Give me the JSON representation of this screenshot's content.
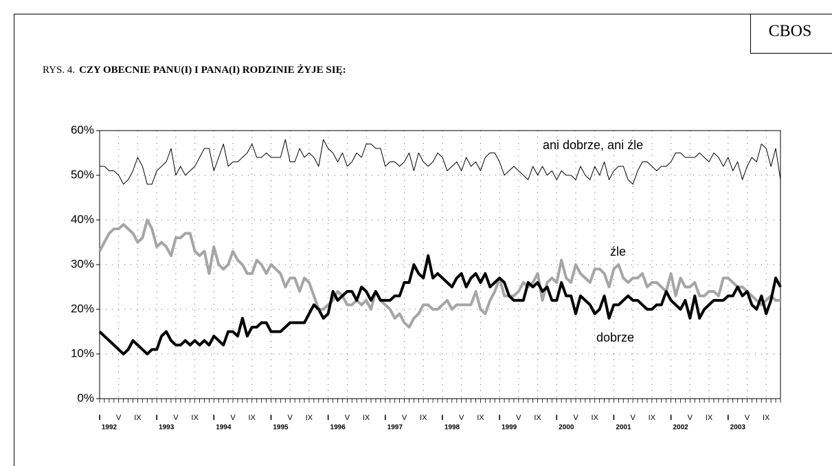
{
  "chart_data": {
    "type": "line",
    "source": "CBOS",
    "title_prefix": "RYS. 4.",
    "title": "CZY OBECNIE PANU(I) I PANA(I) RODZINIE ŻYJE SIĘ:",
    "categories": [
      "I",
      null,
      null,
      null,
      "V",
      null,
      null,
      null,
      "IX",
      null,
      null,
      null,
      "I",
      null,
      null,
      null,
      "V",
      null,
      null,
      null,
      "IX",
      null,
      null,
      null,
      "I",
      null,
      null,
      null,
      "V",
      null,
      null,
      null,
      "IX",
      null,
      null,
      null,
      "I",
      null,
      null,
      null,
      "V",
      null,
      null,
      null,
      "IX",
      null,
      null,
      null,
      "I",
      null,
      null,
      null,
      "V",
      null,
      null,
      null,
      "IX",
      null,
      null,
      null,
      "I",
      null,
      null,
      null,
      "V",
      null,
      null,
      null,
      "IX",
      null,
      null,
      null,
      "I",
      null,
      null,
      null,
      "V",
      null,
      null,
      null,
      "IX",
      null,
      null,
      null,
      "I",
      null,
      null,
      null,
      "V",
      null,
      null,
      null,
      "IX",
      null,
      null,
      null,
      "I",
      null,
      null,
      null,
      "V",
      null,
      null,
      null,
      "IX",
      null,
      null,
      null,
      "I",
      null,
      null,
      null,
      "V",
      null,
      null,
      null,
      "IX",
      null,
      null,
      null,
      "I",
      null,
      null,
      null,
      "V",
      null,
      null,
      null,
      "IX",
      null,
      null,
      null,
      "I",
      null,
      null,
      null,
      "V",
      null,
      null,
      null,
      "IX",
      null,
      null,
      null
    ],
    "years": [
      "1992",
      "1993",
      "1994",
      "1995",
      "1996",
      "1997",
      "1998",
      "1999",
      "2000",
      "2001",
      "2002",
      "2003"
    ],
    "ylim": [
      0,
      60
    ],
    "yticks": [
      {
        "value": 0,
        "label": "0%"
      },
      {
        "value": 10,
        "label": "10%"
      },
      {
        "value": 20,
        "label": "20%"
      },
      {
        "value": 30,
        "label": "30%"
      },
      {
        "value": 40,
        "label": "40%"
      },
      {
        "value": 50,
        "label": "50%"
      },
      {
        "value": 60,
        "label": "60%"
      }
    ],
    "grid": true,
    "series": [
      {
        "name": "ani dobrze, ani źle",
        "color": "#000000",
        "width": 1,
        "values": [
          52,
          52,
          51,
          51,
          50,
          48,
          49,
          51,
          54,
          52,
          48,
          48,
          51,
          52,
          53,
          56,
          50,
          52,
          50,
          51,
          52,
          54,
          56,
          56,
          51,
          54,
          57,
          52,
          53,
          53,
          54,
          55,
          57,
          54,
          54,
          55,
          54,
          54,
          54,
          58,
          53,
          53,
          56,
          54,
          55,
          54,
          52,
          58,
          56,
          55,
          53,
          55,
          52,
          53,
          55,
          54,
          57,
          57,
          56,
          56,
          52,
          53,
          53,
          52,
          53,
          55,
          51,
          55,
          53,
          52,
          53,
          55,
          54,
          51,
          52,
          53,
          51,
          54,
          52,
          53,
          51,
          54,
          55,
          55,
          53,
          50,
          51,
          52,
          51,
          50,
          49,
          52,
          50,
          52,
          50,
          51,
          49,
          51,
          50,
          50,
          49,
          52,
          50,
          49,
          52,
          50,
          53,
          49,
          51,
          52,
          52,
          49,
          48,
          51,
          53,
          53,
          52,
          51,
          52,
          52,
          53,
          55,
          55,
          54,
          54,
          54,
          55,
          54,
          53,
          55,
          54,
          52,
          54,
          51,
          53,
          49,
          52,
          54,
          53,
          57,
          56,
          52,
          56,
          49
        ]
      },
      {
        "name": "źle",
        "color": "#a6a6a6",
        "width": 4,
        "values": [
          33,
          35,
          37,
          38,
          38,
          39,
          38,
          37,
          35,
          36,
          40,
          38,
          34,
          35,
          34,
          32,
          36,
          36,
          37,
          37,
          33,
          32,
          33,
          28,
          34,
          30,
          29,
          30,
          33,
          31,
          30,
          28,
          28,
          31,
          30,
          28,
          30,
          29,
          28,
          25,
          27,
          27,
          24,
          27,
          26,
          23,
          20,
          20,
          21,
          22,
          24,
          23,
          21,
          21,
          22,
          21,
          22,
          20,
          24,
          22,
          21,
          20,
          18,
          19,
          17,
          16,
          18,
          19,
          21,
          21,
          20,
          20,
          21,
          22,
          20,
          21,
          21,
          21,
          21,
          24,
          20,
          19,
          22,
          24,
          27,
          23,
          23,
          23,
          24,
          26,
          25,
          26,
          28,
          22,
          26,
          27,
          26,
          31,
          27,
          26,
          30,
          28,
          27,
          26,
          29,
          29,
          28,
          25,
          29,
          30,
          27,
          26,
          27,
          27,
          28,
          25,
          26,
          26,
          25,
          24,
          28,
          23,
          27,
          25,
          25,
          26,
          23,
          23,
          24,
          24,
          23,
          27,
          27,
          26,
          25,
          25,
          24,
          23,
          22,
          21,
          22,
          23,
          22,
          22
        ]
      },
      {
        "name": "dobrze",
        "color": "#000000",
        "width": 4,
        "values": [
          15,
          14,
          13,
          12,
          11,
          10,
          11,
          13,
          12,
          11,
          10,
          11,
          11,
          14,
          15,
          13,
          12,
          12,
          13,
          12,
          13,
          12,
          13,
          12,
          14,
          13,
          12,
          15,
          15,
          14,
          18,
          14,
          16,
          16,
          17,
          17,
          15,
          15,
          15,
          16,
          17,
          17,
          17,
          17,
          19,
          21,
          20,
          18,
          19,
          24,
          22,
          23,
          24,
          24,
          22,
          25,
          24,
          22,
          24,
          22,
          22,
          22,
          23,
          23,
          26,
          26,
          30,
          28,
          27,
          32,
          27,
          28,
          27,
          26,
          25,
          27,
          28,
          25,
          27,
          28,
          26,
          28,
          25,
          26,
          27,
          26,
          23,
          22,
          22,
          22,
          26,
          25,
          26,
          24,
          25,
          22,
          22,
          26,
          23,
          23,
          19,
          23,
          22,
          21,
          19,
          20,
          23,
          18,
          21,
          21,
          22,
          23,
          22,
          22,
          21,
          20,
          20,
          21,
          21,
          24,
          22,
          21,
          20,
          22,
          18,
          23,
          18,
          20,
          21,
          22,
          22,
          22,
          23,
          23,
          25,
          23,
          24,
          21,
          20,
          23,
          19,
          22,
          27,
          25
        ]
      }
    ]
  }
}
